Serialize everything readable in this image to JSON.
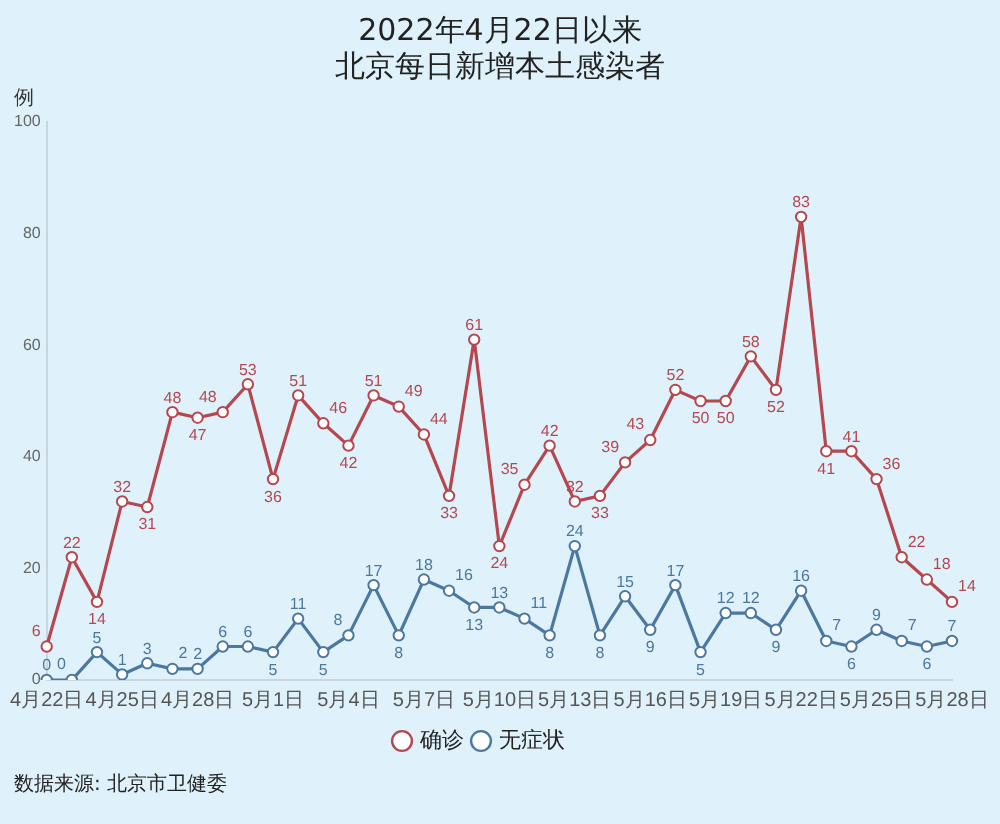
{
  "chart_data": {
    "type": "line",
    "title": "2022年4月22日以来",
    "subtitle": "北京每日新增本土感染者",
    "ylabel": "例",
    "categories": [
      "4月22日",
      null,
      null,
      "4月25日",
      null,
      null,
      "4月28日",
      null,
      null,
      "5月1日",
      null,
      null,
      "5月4日",
      null,
      null,
      "5月7日",
      null,
      null,
      "5月10日",
      null,
      null,
      "5月13日",
      null,
      null,
      "5月16日",
      null,
      null,
      "5月19日",
      null,
      null,
      "5月22日",
      null,
      null,
      "5月25日",
      null,
      null,
      "5月28日"
    ],
    "series": [
      {
        "name": "确诊",
        "color": "#b5474f",
        "values": [
          6,
          22,
          14,
          32,
          31,
          48,
          47,
          48,
          53,
          36,
          51,
          46,
          42,
          51,
          49,
          44,
          33,
          61,
          24,
          35,
          42,
          32,
          33,
          39,
          43,
          52,
          50,
          50,
          58,
          52,
          83,
          41,
          41,
          36,
          22,
          18,
          14
        ]
      },
      {
        "name": "无症状",
        "color": "#4b77a0",
        "values": [
          0,
          0,
          5,
          1,
          3,
          2,
          2,
          6,
          6,
          5,
          11,
          5,
          8,
          17,
          8,
          18,
          16,
          13,
          13,
          11,
          8,
          24,
          8,
          15,
          9,
          17,
          5,
          12,
          12,
          9,
          16,
          7,
          6,
          9,
          7,
          6,
          7
        ]
      }
    ],
    "ylim": [
      0,
      100
    ],
    "yticks": [
      0,
      20,
      40,
      60,
      80,
      100
    ],
    "grid": false,
    "legend": "bottom",
    "marker": "circle",
    "line_style": "solid",
    "data_labels": true,
    "annotations": [
      "数据来源: 北京市卫健委"
    ]
  }
}
